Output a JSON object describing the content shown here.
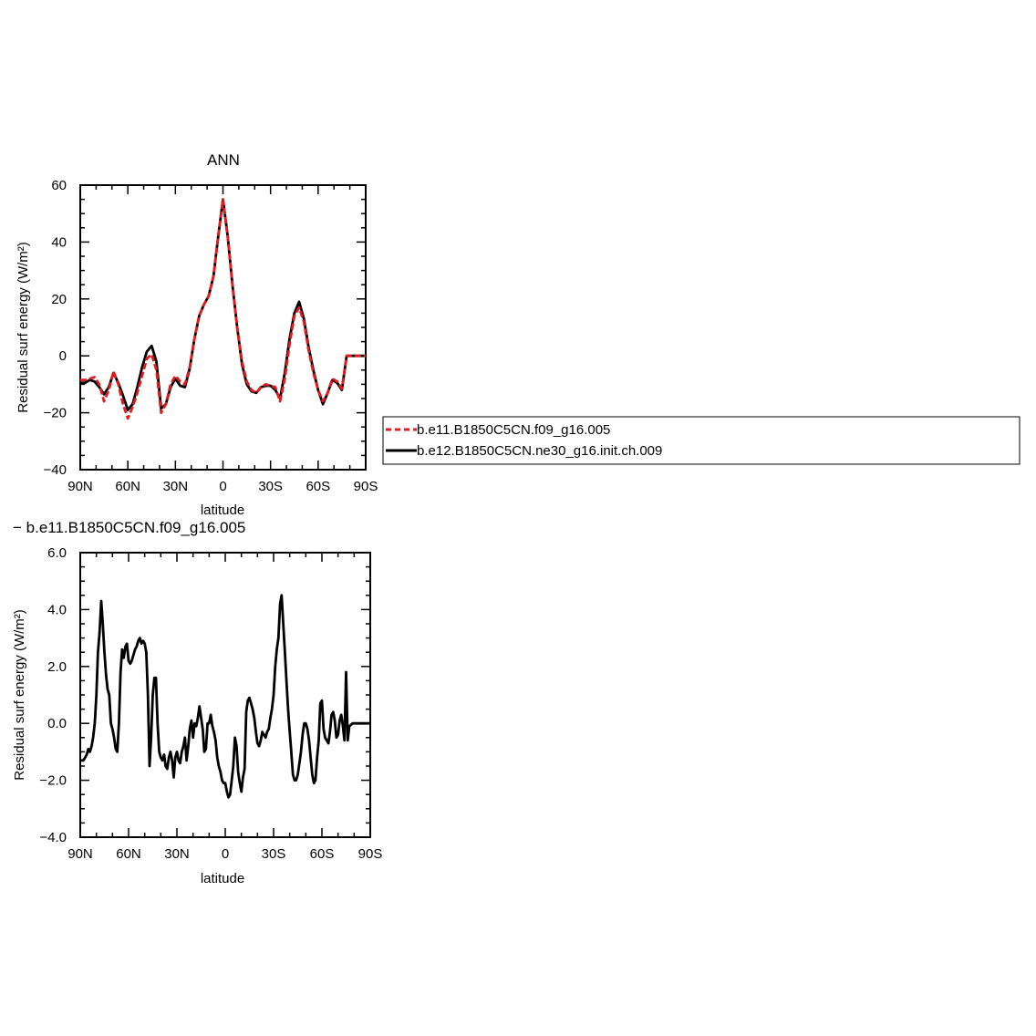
{
  "chart_data": [
    {
      "type": "line",
      "title": "ANN",
      "xlabel": "latitude",
      "ylabel": "Residual surf energy (W/m²)",
      "x_direction": "north-to-south",
      "xlim": [
        90,
        -90
      ],
      "ylim": [
        -40,
        60
      ],
      "xticks": [
        90,
        60,
        30,
        0,
        -30,
        -60,
        -90
      ],
      "xtick_labels": [
        "90N",
        "60N",
        "30N",
        "0",
        "30S",
        "60S",
        "90S"
      ],
      "yticks": [
        -40,
        -20,
        0,
        20,
        40,
        60
      ],
      "ytick_labels": [
        "−40",
        "−20",
        "0",
        "20",
        "40",
        "60"
      ],
      "grid": false,
      "legend_position": "right",
      "series": [
        {
          "name": "b.e11.B1850C5CN.f09_g16.005",
          "color": "#e41a1c",
          "dash": "dashed",
          "x": [
            90,
            87,
            84,
            81,
            78,
            75,
            72,
            69,
            66,
            63,
            60,
            57,
            54,
            51,
            48,
            45,
            42,
            39,
            36,
            33,
            30,
            27,
            24,
            21,
            18,
            15,
            12,
            9,
            6,
            3,
            0,
            -3,
            -6,
            -9,
            -12,
            -15,
            -18,
            -21,
            -24,
            -27,
            -30,
            -33,
            -36,
            -39,
            -42,
            -45,
            -48,
            -51,
            -54,
            -57,
            -60,
            -63,
            -66,
            -69,
            -72,
            -75,
            -78,
            -81,
            -84,
            -87,
            -90
          ],
          "y": [
            -8.5,
            -8.5,
            -8,
            -7.5,
            -10,
            -16,
            -12,
            -5.5,
            -10,
            -17,
            -22,
            -18,
            -13,
            -7,
            -1,
            0.5,
            -5,
            -20,
            -17,
            -10,
            -7,
            -9,
            -10,
            -4,
            6,
            14,
            18,
            21,
            28,
            42,
            55,
            42,
            25,
            10,
            -2,
            -9,
            -12,
            -13,
            -11,
            -10,
            -10.5,
            -11,
            -16,
            -8,
            4,
            14,
            17,
            12,
            2,
            -6,
            -12,
            -16,
            -13,
            -8,
            -9,
            -11.5,
            0,
            0,
            0,
            0,
            0
          ]
        },
        {
          "name": "b.e12.B1850C5CN.ne30_g16.init.ch.009",
          "color": "#000000",
          "dash": "solid",
          "x": [
            90,
            87,
            84,
            81,
            78,
            75,
            72,
            69,
            66,
            63,
            60,
            57,
            54,
            51,
            48,
            45,
            42,
            39,
            36,
            33,
            30,
            27,
            24,
            21,
            18,
            15,
            12,
            9,
            6,
            3,
            0,
            -3,
            -6,
            -9,
            -12,
            -15,
            -18,
            -21,
            -24,
            -27,
            -30,
            -33,
            -36,
            -39,
            -42,
            -45,
            -48,
            -51,
            -54,
            -57,
            -60,
            -63,
            -66,
            -69,
            -72,
            -75,
            -78,
            -81,
            -84,
            -87,
            -90
          ],
          "y": [
            -9.5,
            -9.5,
            -8.5,
            -9,
            -11,
            -13.5,
            -11,
            -6,
            -9.5,
            -14,
            -19,
            -17,
            -11,
            -4,
            1.5,
            3.5,
            -2,
            -18.5,
            -17,
            -11,
            -8,
            -10.5,
            -11,
            -4.5,
            6,
            14,
            18,
            21,
            28,
            42,
            55,
            42,
            25,
            10,
            -3,
            -10,
            -12.5,
            -13,
            -11,
            -10.5,
            -10.5,
            -12,
            -15,
            -6,
            6,
            15,
            19,
            13,
            3,
            -5,
            -12,
            -17,
            -13,
            -8.5,
            -9.5,
            -12,
            0,
            0,
            0,
            0,
            0
          ]
        }
      ]
    },
    {
      "type": "line",
      "title": "− b.e11.B1850C5CN.f09_g16.005",
      "xlabel": "latitude",
      "ylabel": "Residual surf energy (W/m²)",
      "x_direction": "north-to-south",
      "xlim": [
        90,
        -90
      ],
      "ylim": [
        -4,
        6
      ],
      "xticks": [
        90,
        60,
        30,
        0,
        -30,
        -60,
        -90
      ],
      "xtick_labels": [
        "90N",
        "60N",
        "30N",
        "0",
        "30S",
        "60S",
        "90S"
      ],
      "yticks": [
        -4,
        -2,
        0,
        2,
        4,
        6
      ],
      "ytick_labels": [
        "−4.0",
        "−2.0",
        "0.0",
        "2.0",
        "4.0",
        "6.0"
      ],
      "grid": false,
      "series": [
        {
          "name": "",
          "color": "#000000",
          "dash": "solid",
          "x": [
            90,
            88,
            86,
            85,
            84,
            83,
            82,
            81,
            80,
            79,
            78,
            77,
            76,
            75,
            74,
            73,
            72,
            71,
            70,
            69,
            68,
            67,
            66,
            65,
            64,
            63,
            62,
            61,
            60,
            59,
            58,
            57,
            56,
            55,
            54,
            53,
            52,
            51,
            50,
            49,
            48,
            47,
            46,
            45,
            44,
            43,
            42,
            41,
            40,
            39,
            38,
            37,
            36,
            35,
            34,
            33,
            32,
            31,
            30,
            29,
            28,
            27,
            26,
            25,
            24,
            23,
            22,
            21,
            20,
            19,
            18,
            17,
            16,
            15,
            14,
            13,
            12,
            11,
            10,
            9,
            8,
            7,
            6,
            5,
            4,
            3,
            2,
            1,
            0,
            -1,
            -2,
            -3,
            -4,
            -5,
            -6,
            -7,
            -8,
            -9,
            -10,
            -11,
            -12,
            -13,
            -14,
            -15,
            -16,
            -17,
            -18,
            -19,
            -20,
            -21,
            -22,
            -23,
            -24,
            -25,
            -26,
            -27,
            -28,
            -29,
            -30,
            -31,
            -32,
            -33,
            -34,
            -35,
            -36,
            -37,
            -38,
            -39,
            -40,
            -41,
            -42,
            -43,
            -44,
            -45,
            -46,
            -47,
            -48,
            -49,
            -50,
            -51,
            -52,
            -53,
            -54,
            -55,
            -56,
            -57,
            -58,
            -59,
            -60,
            -61,
            -62,
            -63,
            -64,
            -65,
            -66,
            -67,
            -68,
            -69,
            -70,
            -71,
            -72,
            -73,
            -74,
            -75,
            -76,
            -77,
            -78,
            -79,
            -80,
            -82,
            -84,
            -86,
            -88,
            -90
          ],
          "y": [
            -1.3,
            -1.3,
            -1.1,
            -0.9,
            -1.0,
            -0.8,
            -0.5,
            0.0,
            1.0,
            2.5,
            3.2,
            4.3,
            3.5,
            2.5,
            1.7,
            1.2,
            1.0,
            0.0,
            -0.2,
            -0.5,
            -0.9,
            -1.0,
            0.0,
            1.8,
            2.6,
            2.3,
            2.7,
            2.8,
            2.2,
            2.1,
            2.2,
            2.4,
            2.6,
            2.7,
            2.9,
            3.0,
            2.8,
            2.9,
            2.8,
            2.5,
            1.0,
            -1.5,
            -0.5,
            1.0,
            1.6,
            1.6,
            0.0,
            -1.0,
            -1.2,
            -1.3,
            -1.1,
            -1.5,
            -1.6,
            -1.2,
            -1.0,
            -1.3,
            -1.9,
            -1.2,
            -1.0,
            -1.3,
            -1.4,
            -1.0,
            -0.8,
            -0.5,
            -1.3,
            -0.8,
            -0.2,
            0.1,
            -0.5,
            0.0,
            -0.1,
            0.2,
            0.6,
            0.2,
            -0.2,
            -1.0,
            -0.9,
            0.0,
            0.0,
            0.3,
            -0.1,
            -0.3,
            -0.6,
            -1.2,
            -1.5,
            -1.7,
            -2.0,
            -2.1,
            -2.1,
            -2.4,
            -2.6,
            -2.5,
            -2.0,
            -1.5,
            -0.5,
            -0.8,
            -1.7,
            -2.1,
            -2.4,
            -1.9,
            -1.6,
            0.4,
            0.8,
            0.9,
            0.7,
            0.5,
            0.2,
            -0.3,
            -0.7,
            -0.8,
            -0.6,
            -0.3,
            -0.4,
            -0.5,
            -0.3,
            -0.2,
            0.2,
            0.5,
            1.0,
            2.0,
            2.6,
            3.0,
            4.2,
            4.5,
            3.5,
            2.5,
            1.5,
            0.5,
            -0.3,
            -1.0,
            -1.8,
            -2.0,
            -2.0,
            -1.8,
            -1.4,
            -1.0,
            -0.4,
            0.0,
            0.0,
            -0.2,
            -0.6,
            -1.2,
            -1.8,
            -2.1,
            -2.0,
            -1.2,
            -0.6,
            0.7,
            0.8,
            -0.2,
            -0.5,
            -0.6,
            -0.7,
            -0.3,
            0.3,
            0.4,
            0.1,
            -0.5,
            -0.4,
            0.1,
            0.3,
            -0.1,
            -0.6,
            1.8,
            -0.6,
            -0.1,
            -0.05,
            0.0,
            0.0,
            0.0,
            0.0,
            0.0,
            0.0,
            0.0
          ]
        }
      ]
    }
  ]
}
